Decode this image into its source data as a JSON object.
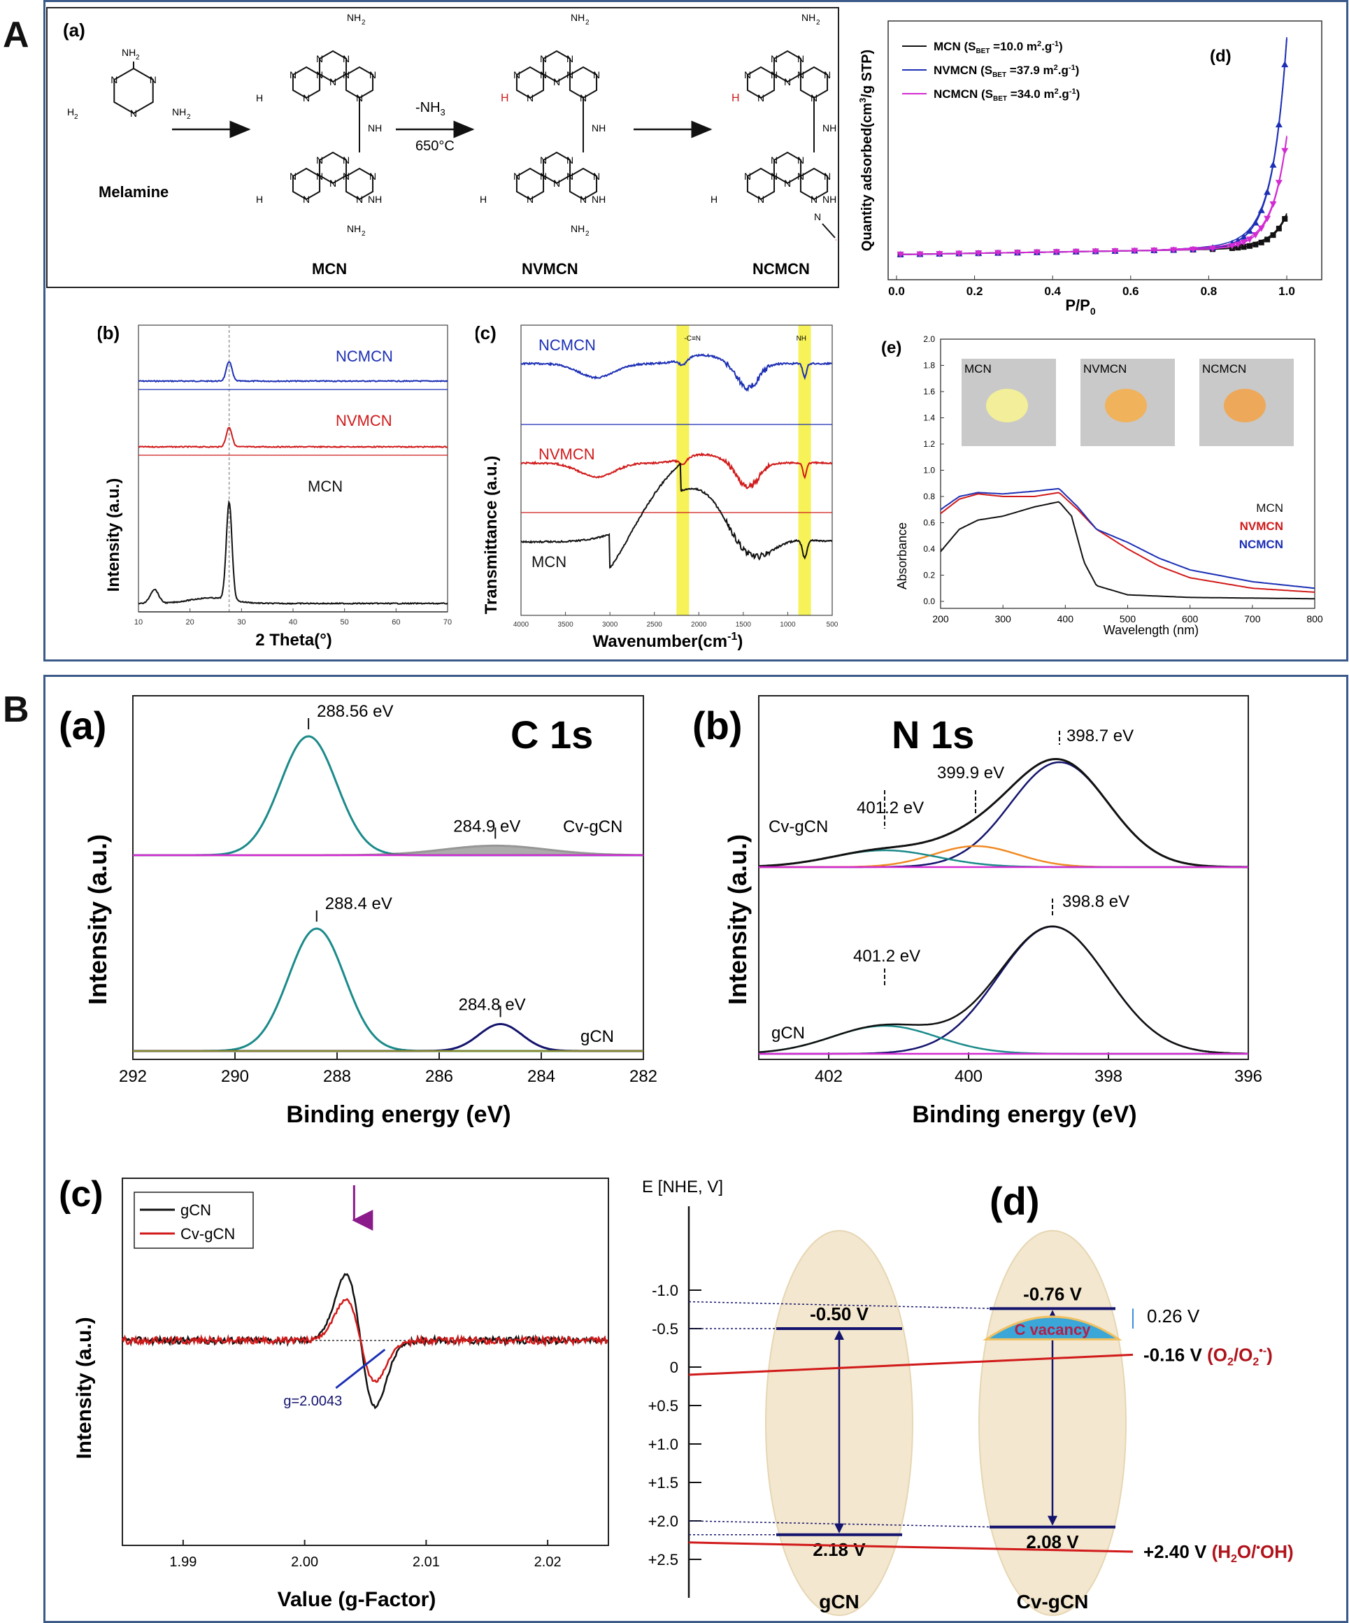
{
  "panel_letters": {
    "A": "A",
    "B": "B"
  },
  "colors": {
    "frame": "#3b5a8a",
    "mcn": "#111111",
    "nvmcn": "#d11a1a",
    "ncmcn": "#1c2fb5",
    "teal": "#1b8a8a",
    "navy": "#14146e",
    "orange": "#f08a24",
    "magenta": "#d22bd2",
    "highlight": "#f5f03a"
  },
  "scheme": {
    "tag": "(a)",
    "arrow1_top": "-NH",
    "arrow1_sub": "3",
    "arrow1_bottom": "650°C",
    "names": [
      "Melamine",
      "MCN",
      "NVMCN",
      "NCMCN"
    ],
    "atoms": {
      "N": "N",
      "NH": "NH",
      "NH2": "NH",
      "sub2": "2",
      "H2N": "H",
      "H": "H",
      "cyano_N": "N"
    }
  },
  "chart_data": [
    {
      "id": "A-b",
      "type": "line",
      "tag": "(b)",
      "xlabel": "2 Theta(°)",
      "ylabel": "Intensity (a.u.)",
      "xlim": [
        10,
        70
      ],
      "xticks": [
        10,
        20,
        30,
        40,
        50,
        60,
        70
      ],
      "series": [
        {
          "name": "NCMCN",
          "peak_2theta": 27.6,
          "color": "#1c2fb5"
        },
        {
          "name": "NVMCN",
          "peak_2theta": 27.6,
          "color": "#d11a1a"
        },
        {
          "name": "MCN",
          "peak_2theta": 27.6,
          "minor_peak_2theta": 13.1,
          "color": "#111111"
        }
      ]
    },
    {
      "id": "A-c",
      "type": "line",
      "tag": "(c)",
      "xlabel": "Wavenumber(cm",
      "xlabel_sup": "-1",
      "xlabel_end": ")",
      "ylabel": "Transmittance (a.u.)",
      "xlim": [
        4000,
        500
      ],
      "xticks": [
        4000,
        3500,
        3000,
        2500,
        2000,
        1500,
        1000,
        500
      ],
      "annotations": [
        "-C≡N",
        "NH"
      ],
      "highlight_bands": [
        2180,
        810
      ],
      "series": [
        {
          "name": "NCMCN",
          "color": "#1c2fb5"
        },
        {
          "name": "NVMCN",
          "color": "#d11a1a"
        },
        {
          "name": "MCN",
          "color": "#111111"
        }
      ]
    },
    {
      "id": "A-d",
      "type": "line",
      "tag": "(d)",
      "xlabel": "P/P",
      "xlabel_sub": "0",
      "ylabel": "Quantity adsorbed(cm",
      "ylabel_sup": "3",
      "ylabel_end": "/g STP)",
      "xlim": [
        0.0,
        1.0
      ],
      "xticks": [
        "0.0",
        "0.2",
        "0.4",
        "0.6",
        "0.8",
        "1.0"
      ],
      "legend": [
        {
          "name": "MCN",
          "sbet_pre": "(S",
          "sbet_sub": "BET",
          "sbet_val": " =10.0 m",
          "sbet_unit_sup": "2",
          "sbet_end": ".g",
          "sbet_end_sup": "-1",
          "sbet_close": ")",
          "color": "#111111",
          "marker": "square"
        },
        {
          "name": "NVMCN",
          "sbet_pre": "(S",
          "sbet_sub": "BET",
          "sbet_val": " =37.9 m",
          "sbet_unit_sup": "2",
          "sbet_end": ".g",
          "sbet_end_sup": "-1",
          "sbet_close": ")",
          "color": "#1c2fb5",
          "marker": "triangle-up"
        },
        {
          "name": "NCMCN",
          "sbet_pre": "(S",
          "sbet_sub": "BET",
          "sbet_val": " =34.0 m",
          "sbet_unit_sup": "2",
          "sbet_end": ".g",
          "sbet_end_sup": "-1",
          "sbet_close": ")",
          "color": "#d22bd2",
          "marker": "triangle-down"
        }
      ],
      "max_values_relative": {
        "MCN": 0.16,
        "NVMCN": 1.0,
        "NCMCN": 0.53
      }
    },
    {
      "id": "A-e",
      "type": "line",
      "tag": "(e)",
      "xlabel": "Wavelength (nm)",
      "ylabel": "Absorbance",
      "xlim": [
        200,
        800
      ],
      "ylim": [
        0.0,
        2.0
      ],
      "xticks": [
        200,
        300,
        400,
        500,
        600,
        700,
        800
      ],
      "yticks": [
        "0.0",
        "0.2",
        "0.4",
        "0.6",
        "0.8",
        "1.0",
        "1.2",
        "1.4",
        "1.6",
        "1.8",
        "2.0"
      ],
      "photo_labels": [
        "MCN",
        "NVMCN",
        "NCMCN"
      ],
      "series": [
        {
          "name": "MCN",
          "color": "#111111",
          "x": [
            200,
            230,
            260,
            300,
            350,
            390,
            410,
            430,
            450,
            500,
            600,
            800
          ],
          "y": [
            0.38,
            0.55,
            0.62,
            0.65,
            0.72,
            0.76,
            0.65,
            0.3,
            0.12,
            0.05,
            0.03,
            0.02
          ]
        },
        {
          "name": "NVMCN",
          "color": "#d11a1a",
          "x": [
            200,
            230,
            260,
            300,
            350,
            390,
            420,
            450,
            500,
            550,
            600,
            700,
            800
          ],
          "y": [
            0.67,
            0.78,
            0.82,
            0.8,
            0.8,
            0.83,
            0.7,
            0.55,
            0.4,
            0.27,
            0.18,
            0.1,
            0.07
          ]
        },
        {
          "name": "NCMCN",
          "color": "#1c2fb5",
          "x": [
            200,
            230,
            260,
            300,
            350,
            390,
            420,
            450,
            500,
            550,
            600,
            700,
            800
          ],
          "y": [
            0.7,
            0.8,
            0.83,
            0.82,
            0.84,
            0.86,
            0.72,
            0.55,
            0.45,
            0.33,
            0.24,
            0.15,
            0.1
          ]
        }
      ]
    },
    {
      "id": "B-a",
      "type": "line",
      "tag": "(a)",
      "title": "C 1s",
      "xlabel": "Binding energy (eV)",
      "ylabel": "Intensity (a.u.)",
      "xlim": [
        292,
        282
      ],
      "xticks": [
        292,
        290,
        288,
        286,
        284,
        282
      ],
      "series": [
        {
          "name": "Cv-gCN",
          "peaks": [
            {
              "center": 288.56,
              "label": "288.56 eV",
              "rel_height": 1.0
            },
            {
              "center": 284.9,
              "label": "284.9 eV",
              "rel_height": 0.08
            }
          ]
        },
        {
          "name": "gCN",
          "peaks": [
            {
              "center": 288.4,
              "label": "288.4 eV",
              "rel_height": 1.0
            },
            {
              "center": 284.8,
              "label": "284.8 eV",
              "rel_height": 0.22
            }
          ]
        }
      ]
    },
    {
      "id": "B-b",
      "type": "line",
      "tag": "(b)",
      "title": "N 1s",
      "xlabel": "Binding energy (eV)",
      "ylabel": "Intensity (a.u.)",
      "xlim": [
        403,
        396
      ],
      "xticks": [
        402,
        400,
        398,
        396
      ],
      "series": [
        {
          "name": "Cv-gCN",
          "peaks": [
            {
              "center": 398.7,
              "label": "398.7 eV",
              "rel_height": 1.0
            },
            {
              "center": 399.9,
              "label": "399.9 eV",
              "rel_height": 0.2
            },
            {
              "center": 401.2,
              "label": "401.2 eV",
              "rel_height": 0.16
            }
          ]
        },
        {
          "name": "gCN",
          "peaks": [
            {
              "center": 398.8,
              "label": "398.8 eV",
              "rel_height": 1.0
            },
            {
              "center": 401.2,
              "label": "401.2 eV",
              "rel_height": 0.22
            }
          ]
        }
      ]
    },
    {
      "id": "B-c",
      "type": "line",
      "tag": "(c)",
      "xlabel": "Value (g-Factor)",
      "ylabel": "Intensity (a.u.)",
      "xlim": [
        1.985,
        2.025
      ],
      "xticks": [
        "1.99",
        "2.00",
        "2.01",
        "2.02"
      ],
      "annotation": "g=2.0043",
      "series": [
        {
          "name": "gCN",
          "color": "#111111",
          "g_center": 2.0043,
          "amplitude": 1.0
        },
        {
          "name": "Cv-gCN",
          "color": "#d11a1a",
          "g_center": 2.0043,
          "amplitude": 0.62
        }
      ]
    }
  ],
  "band": {
    "tag": "(d)",
    "ylabel": "E [NHE, V]",
    "yticks": [
      "-1.0",
      "-0.5",
      "0",
      "+0.5",
      "+1.0",
      "+1.5",
      "+2.0",
      "+2.5"
    ],
    "materials": [
      {
        "name": "gCN",
        "cb_label": "-0.50 V",
        "vb_label": "2.18 V",
        "cb": -0.5,
        "vb": 2.18
      },
      {
        "name": "Cv-gCN",
        "cb_label": "-0.76 V",
        "vb_label": "2.08 V",
        "cb": -0.76,
        "vb": 2.08
      }
    ],
    "vacancy_label": "C vacancy",
    "offset_label": "0.26 V",
    "redox": [
      {
        "potential": -0.16,
        "value": "-0.16 V",
        "couple_pre": "(O",
        "couple_sub1": "2",
        "couple_mid": "/O",
        "couple_sub2": "2",
        "couple_sup": "•-",
        "couple_end": ")"
      },
      {
        "potential": 2.4,
        "value": "+2.40 V",
        "couple_pre": "(H",
        "couple_sub1": "2",
        "couple_mid": "O/",
        "couple_sup": "•",
        "couple_end": "OH)"
      }
    ]
  }
}
